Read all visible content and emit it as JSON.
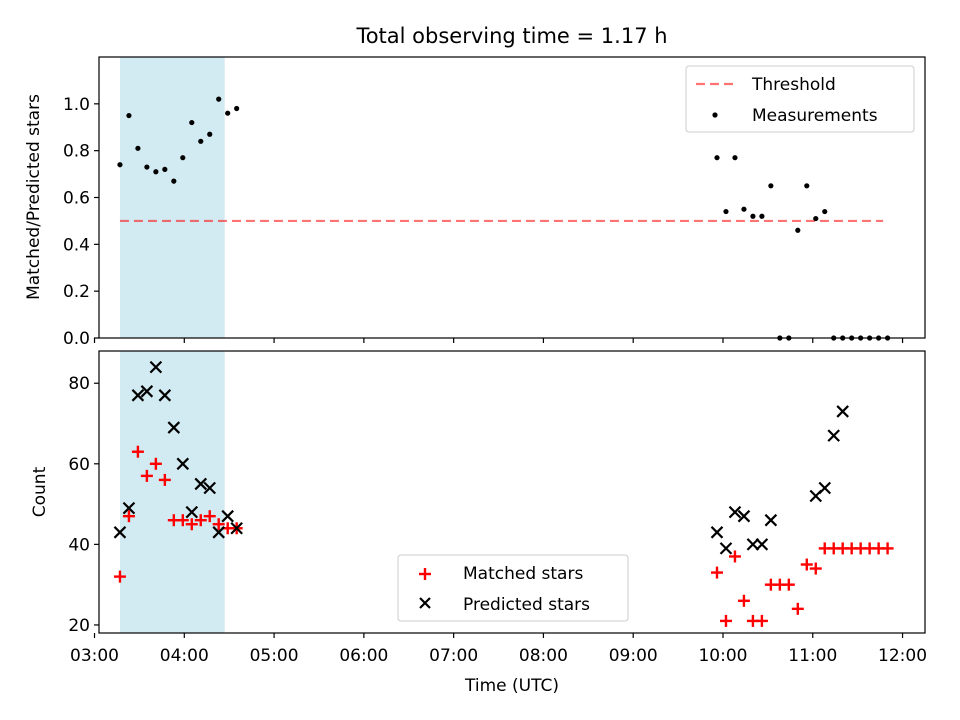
{
  "chart_data": [
    {
      "type": "scatter",
      "title": "Total observing time = 1.17 h",
      "ylabel": "Matched/Predicted stars",
      "xlabel": "",
      "xlim": [
        "03:03",
        "12:15"
      ],
      "ylim": [
        0,
        1.2
      ],
      "yticks": [
        0.0,
        0.2,
        0.4,
        0.6,
        0.8,
        1.0
      ],
      "yticklabels": [
        "0.0",
        "0.2",
        "0.4",
        "0.6",
        "0.8",
        "1.0"
      ],
      "shaded_span": {
        "x": [
          "03:17",
          "04:27"
        ],
        "color": "#add8e6"
      },
      "threshold": {
        "name": "Threshold",
        "y": 0.5,
        "x": [
          "03:17",
          "11:47"
        ],
        "color": "#ff0000",
        "style": "dashed"
      },
      "series": [
        {
          "name": "Measurements",
          "color": "#000000",
          "marker": "dot",
          "x": [
            "03:17",
            "03:23",
            "03:29",
            "03:35",
            "03:41",
            "03:47",
            "03:53",
            "03:59",
            "04:05",
            "04:11",
            "04:17",
            "04:23",
            "04:29",
            "04:35",
            "09:56",
            "10:02",
            "10:08",
            "10:14",
            "10:20",
            "10:26",
            "10:32",
            "10:38",
            "10:44",
            "10:50",
            "10:56",
            "11:02",
            "11:08",
            "11:14",
            "11:20",
            "11:26",
            "11:32",
            "11:38",
            "11:44",
            "11:50"
          ],
          "values": [
            0.74,
            0.95,
            0.81,
            0.73,
            0.71,
            0.72,
            0.67,
            0.77,
            0.92,
            0.84,
            0.87,
            1.02,
            0.96,
            0.98,
            0.77,
            0.54,
            0.77,
            0.55,
            0.52,
            0.52,
            0.65,
            0.0,
            0.0,
            0.46,
            0.65,
            0.51,
            0.54,
            0.0,
            0.0,
            0.0,
            0.0,
            0.0,
            0.0,
            0.0
          ]
        }
      ],
      "legend": {
        "location": "top-right",
        "entries": [
          "Threshold",
          "Measurements"
        ]
      }
    },
    {
      "type": "scatter",
      "title": "",
      "xlabel": "Time (UTC)",
      "ylabel": "Count",
      "xlim": [
        "03:03",
        "12:15"
      ],
      "ylim": [
        18,
        88
      ],
      "xticks": [
        "03:00",
        "04:00",
        "05:00",
        "06:00",
        "07:00",
        "08:00",
        "09:00",
        "10:00",
        "11:00",
        "12:00"
      ],
      "yticks": [
        20,
        40,
        60,
        80
      ],
      "yticklabels": [
        "20",
        "40",
        "60",
        "80"
      ],
      "shaded_span": {
        "x": [
          "03:17",
          "04:27"
        ],
        "color": "#add8e6"
      },
      "series": [
        {
          "name": "Matched stars",
          "color": "#ff0000",
          "marker": "plus",
          "x": [
            "03:17",
            "03:23",
            "03:29",
            "03:35",
            "03:41",
            "03:47",
            "03:53",
            "03:59",
            "04:05",
            "04:11",
            "04:17",
            "04:23",
            "04:29",
            "04:35",
            "09:56",
            "10:02",
            "10:08",
            "10:14",
            "10:20",
            "10:26",
            "10:32",
            "10:38",
            "10:44",
            "10:50",
            "10:56",
            "11:02",
            "11:08",
            "11:14",
            "11:20",
            "11:26",
            "11:32",
            "11:38",
            "11:44",
            "11:50"
          ],
          "values": [
            32,
            47,
            63,
            57,
            60,
            56,
            46,
            46,
            45,
            46,
            47,
            45,
            44,
            44,
            33,
            21,
            37,
            26,
            21,
            21,
            30,
            30,
            30,
            24,
            35,
            34,
            39,
            39,
            39,
            39,
            39,
            39,
            39,
            39
          ]
        },
        {
          "name": "Predicted stars",
          "color": "#000000",
          "marker": "cross",
          "x": [
            "03:17",
            "03:23",
            "03:29",
            "03:35",
            "03:41",
            "03:47",
            "03:53",
            "03:59",
            "04:05",
            "04:11",
            "04:17",
            "04:23",
            "04:29",
            "04:35",
            "09:56",
            "10:02",
            "10:08",
            "10:14",
            "10:20",
            "10:26",
            "10:32",
            "11:02",
            "11:08",
            "11:14",
            "11:20"
          ],
          "values": [
            43,
            49,
            77,
            78,
            84,
            77,
            69,
            60,
            48,
            55,
            54,
            43,
            47,
            44,
            43,
            39,
            48,
            47,
            40,
            40,
            46,
            52,
            54,
            67,
            73
          ]
        }
      ],
      "legend": {
        "location": "lower-center",
        "entries": [
          "Matched stars",
          "Predicted stars"
        ]
      }
    }
  ]
}
